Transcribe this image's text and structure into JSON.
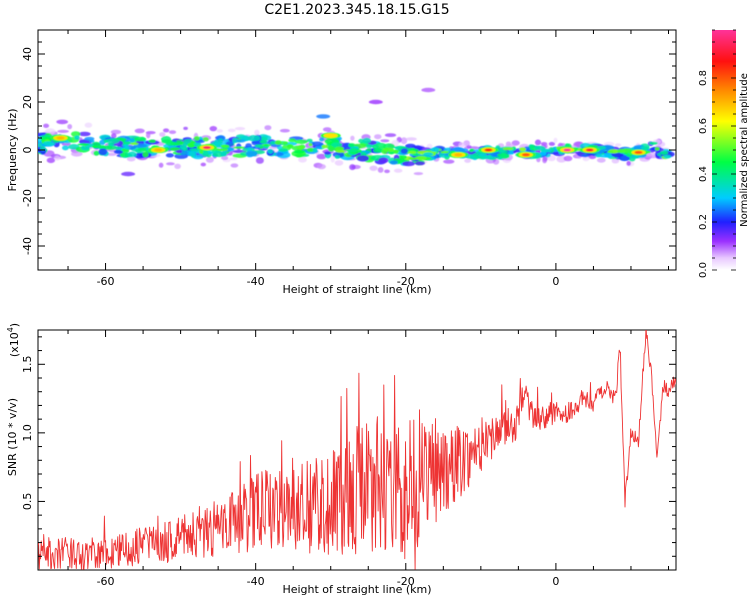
{
  "title": "C2E1.2023.345.18.15.G15",
  "chart_data": [
    {
      "type": "heatmap",
      "xlabel": "Height of straight line (km)",
      "ylabel": "Frequency (Hz)",
      "xlim": [
        -69,
        16
      ],
      "ylim": [
        -50,
        50
      ],
      "x_ticks": [
        -60,
        -40,
        -20,
        0
      ],
      "y_ticks": [
        40,
        20,
        0,
        -20,
        -40
      ],
      "x_tick_labels": [
        "-60",
        "-40",
        "-20",
        "0"
      ],
      "y_tick_labels": [
        "40",
        "20",
        "0",
        "-20",
        "-40"
      ],
      "colorbar": {
        "label": "Normalized spectral amplitude",
        "range": [
          0,
          1
        ],
        "ticks": [
          0.0,
          0.2,
          0.4,
          0.6,
          0.8
        ],
        "tick_labels": [
          "0.0",
          "0.2",
          "0.4",
          "0.6",
          "0.8"
        ],
        "colormap": "rainbow: white-magenta-violet-blue-cyan-green-yellow-orange-red-magenta"
      },
      "ridge": [
        [
          -69,
          3
        ],
        [
          -65,
          4
        ],
        [
          -60,
          2
        ],
        [
          -55,
          1
        ],
        [
          -50,
          1
        ],
        [
          -45,
          1
        ],
        [
          -40,
          2
        ],
        [
          -35,
          1
        ],
        [
          -30,
          1
        ],
        [
          -25,
          0
        ],
        [
          -20,
          -2
        ],
        [
          -17,
          -2
        ],
        [
          -15,
          -1
        ],
        [
          -10,
          -1
        ],
        [
          -5,
          -1
        ],
        [
          0,
          0
        ],
        [
          5,
          0
        ],
        [
          10,
          -2
        ],
        [
          13,
          1
        ],
        [
          15,
          -3
        ]
      ],
      "hotspots": [
        {
          "x": -46.5,
          "y": 1,
          "amplitude": 0.95
        },
        {
          "x": -9,
          "y": 0,
          "amplitude": 0.85
        },
        {
          "x": -4,
          "y": -2,
          "amplitude": 0.8
        },
        {
          "x": 1.5,
          "y": 0,
          "amplitude": 1.0
        },
        {
          "x": 4.5,
          "y": 0,
          "amplitude": 0.9
        },
        {
          "x": -13,
          "y": -2,
          "amplitude": 0.7
        },
        {
          "x": 11,
          "y": -1,
          "amplitude": 0.8
        },
        {
          "x": -53,
          "y": 0,
          "amplitude": 0.7
        },
        {
          "x": -30,
          "y": 6,
          "amplitude": 0.65
        },
        {
          "x": -66,
          "y": 5,
          "amplitude": 0.7
        }
      ],
      "scattered_blobs": [
        {
          "x": -31,
          "y": 14,
          "amplitude": 0.25
        },
        {
          "x": -24,
          "y": 20,
          "amplitude": 0.12
        },
        {
          "x": -17,
          "y": 25,
          "amplitude": 0.1
        },
        {
          "x": -57,
          "y": -10,
          "amplitude": 0.15
        }
      ]
    },
    {
      "type": "line",
      "xlabel": "Height of straight line (km)",
      "ylabel": "SNR (10 * v/v)",
      "y_multiplier_label": "(x10",
      "y_multiplier_exponent": "4",
      "y_multiplier_close": ")",
      "xlim": [
        -69,
        16
      ],
      "ylim": [
        0,
        1.75
      ],
      "x_ticks": [
        -60,
        -40,
        -20,
        0
      ],
      "y_ticks": [
        0.5,
        1.0,
        1.5
      ],
      "x_tick_labels": [
        "-60",
        "-40",
        "-20",
        "0"
      ],
      "y_tick_labels": [
        "0.5",
        "1.0",
        "1.5"
      ],
      "color": "#ee3333",
      "series": [
        {
          "name": "",
          "x": [
            -69,
            -66,
            -63,
            -60,
            -57,
            -55,
            -52,
            -50,
            -45,
            -40,
            -35,
            -30,
            -25,
            -20,
            -18,
            -15,
            -12,
            -10,
            -8,
            -5,
            -4.5,
            -3,
            0,
            2,
            3.5,
            5,
            6.5,
            8,
            8.5,
            9.2,
            10,
            11,
            12,
            12.7,
            13.5,
            14.3,
            15.1,
            16
          ],
          "y": [
            0.12,
            0.12,
            0.12,
            0.12,
            0.14,
            0.2,
            0.2,
            0.25,
            0.3,
            0.42,
            0.48,
            0.5,
            0.6,
            0.6,
            0.7,
            0.75,
            0.82,
            0.9,
            1.0,
            1.08,
            1.3,
            1.1,
            1.15,
            1.15,
            1.25,
            1.2,
            1.35,
            1.25,
            1.65,
            0.5,
            1.0,
            0.95,
            1.75,
            1.45,
            0.8,
            1.35,
            1.3,
            1.4
          ]
        }
      ],
      "noise_amplitude": [
        [
          -69,
          0.12
        ],
        [
          -60,
          0.12
        ],
        [
          -50,
          0.16
        ],
        [
          -40,
          0.28
        ],
        [
          -30,
          0.4
        ],
        [
          -24,
          0.55
        ],
        [
          -20,
          0.6
        ],
        [
          -15,
          0.35
        ],
        [
          -10,
          0.18
        ],
        [
          -5,
          0.12
        ],
        [
          0,
          0.08
        ],
        [
          8,
          0.06
        ],
        [
          16,
          0.05
        ]
      ]
    }
  ]
}
